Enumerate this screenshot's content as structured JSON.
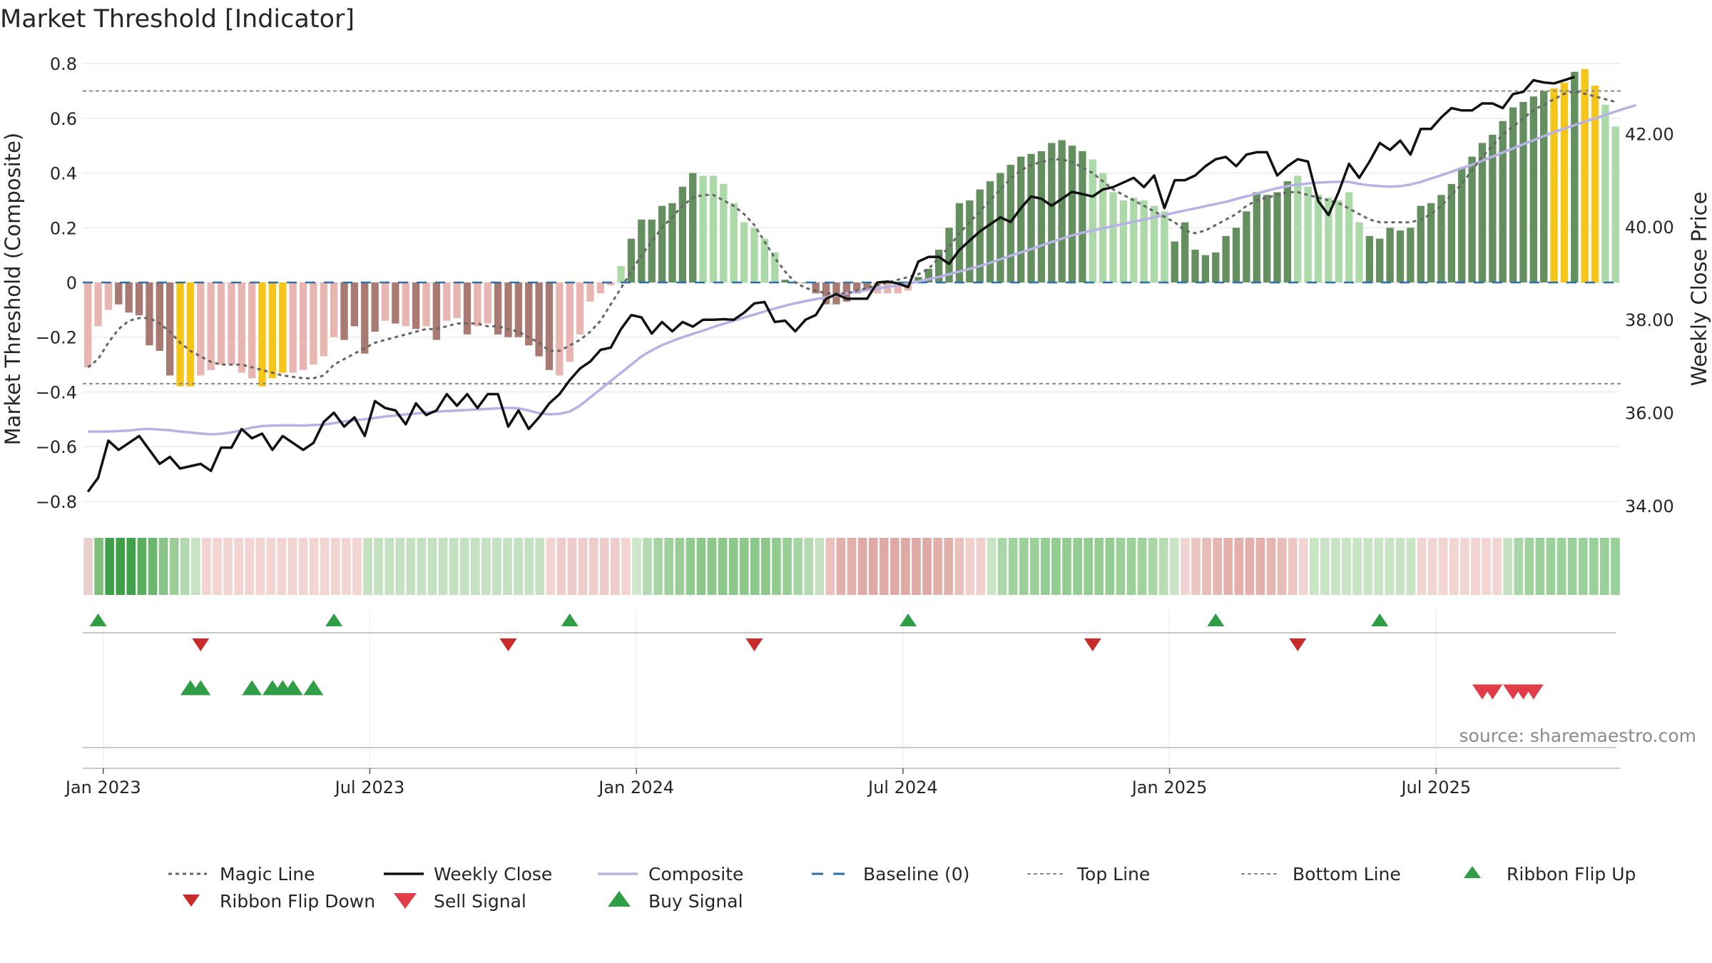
{
  "chart_data": {
    "type": "bar",
    "title": "Market Threshold [Indicator]",
    "ylabel_left": "Market Threshold (Composite)",
    "ylabel_right": "Weekly Close Price",
    "ylim_left": [
      -0.85,
      0.85
    ],
    "ylim_right": [
      33.8,
      43.8
    ],
    "y_ticks_left": [
      "0.8",
      "0.6",
      "0.4",
      "0.2",
      "0",
      "−0.2",
      "−0.4",
      "−0.6",
      "−0.8"
    ],
    "y_tick_values_left": [
      0.8,
      0.6,
      0.4,
      0.2,
      0,
      -0.2,
      -0.4,
      -0.6,
      -0.8
    ],
    "y_ticks_right": [
      "42.00",
      "40.00",
      "38.00",
      "36.00",
      "34.00"
    ],
    "y_tick_values_right": [
      42,
      40,
      38,
      36,
      34
    ],
    "x_ticks": [
      "Jan 2023",
      "Jul 2023",
      "Jan 2024",
      "Jul 2024",
      "Jan 2025",
      "Jul 2025"
    ],
    "x_tick_weeks": [
      1.5,
      27.5,
      53.5,
      79.5,
      105.5,
      131.5
    ],
    "top_line": 0.7,
    "bottom_line": -0.37,
    "baseline": 0,
    "source": "source: sharemaestro.com",
    "colors": {
      "bar_light_red": "#e9b5b0",
      "bar_dark_red": "#a87a72",
      "bar_gold": "#f5c518",
      "bar_light_green": "#abd9a8",
      "bar_dark_green": "#648f5e",
      "magic_line": "#666666",
      "weekly_close": "#111111",
      "composite": "#b7b2e6",
      "baseline": "#2e6fa5",
      "ref_lines": "#888888",
      "flip_up": "#2f9e44",
      "flip_down": "#c92a2a",
      "sell": "#e03d48",
      "buy": "#2f9e44"
    },
    "composite": [
      -0.31,
      -0.16,
      -0.1,
      -0.08,
      -0.11,
      -0.12,
      -0.23,
      -0.25,
      -0.34,
      -0.38,
      -0.38,
      -0.34,
      -0.32,
      -0.3,
      -0.3,
      -0.33,
      -0.35,
      -0.38,
      -0.35,
      -0.33,
      -0.33,
      -0.32,
      -0.3,
      -0.27,
      -0.2,
      -0.21,
      -0.16,
      -0.26,
      -0.18,
      -0.14,
      -0.15,
      -0.16,
      -0.17,
      -0.16,
      -0.21,
      -0.14,
      -0.13,
      -0.19,
      -0.16,
      -0.15,
      -0.19,
      -0.2,
      -0.2,
      -0.23,
      -0.27,
      -0.32,
      -0.34,
      -0.29,
      -0.19,
      -0.07,
      -0.04,
      -0.01,
      0.06,
      0.16,
      0.23,
      0.23,
      0.28,
      0.29,
      0.35,
      0.4,
      0.39,
      0.39,
      0.36,
      0.29,
      0.22,
      0.2,
      0.16,
      0.11,
      0.01,
      0,
      0,
      -0.04,
      -0.08,
      -0.08,
      -0.07,
      -0.04,
      -0.03,
      -0.04,
      -0.04,
      -0.04,
      -0.03,
      0.02,
      0.05,
      0.12,
      0.2,
      0.29,
      0.3,
      0.34,
      0.37,
      0.4,
      0.43,
      0.46,
      0.47,
      0.48,
      0.51,
      0.52,
      0.5,
      0.48,
      0.45,
      0.4,
      0.33,
      0.3,
      0.31,
      0.3,
      0.28,
      0.26,
      0.15,
      0.22,
      0.12,
      0.1,
      0.11,
      0.17,
      0.2,
      0.26,
      0.33,
      0.32,
      0.33,
      0.37,
      0.39,
      0.35,
      0.32,
      0.31,
      0.3,
      0.33,
      0.22,
      0.17,
      0.16,
      0.2,
      0.19,
      0.2,
      0.28,
      0.29,
      0.32,
      0.36,
      0.42,
      0.46,
      0.51,
      0.54,
      0.59,
      0.64,
      0.66,
      0.68,
      0.7,
      0.71,
      0.73,
      0.77,
      0.78,
      0.72,
      0.65,
      0.57
    ],
    "bar_colors": "LLLDDDDDDGGLLLLLLGGGLLLLLDDDDLDLDLDLLDLLDDDDDDLLLLLLLEEEEEEELLLLLLLLDDDDDDDDDLLLLEEEEEEEEEEEEEEEEELLLLLLLLEEEEEEEEEEEELLLLLLLEEEEEEEEEEEEEEEEEEGGEGGLL",
    "bar_color_legend": {
      "L": "light",
      "D": "dark",
      "G": "gold",
      "E": "dark-positive"
    },
    "magic_line": [
      -0.31,
      -0.28,
      -0.22,
      -0.17,
      -0.14,
      -0.13,
      -0.13,
      -0.15,
      -0.18,
      -0.22,
      -0.25,
      -0.27,
      -0.29,
      -0.3,
      -0.3,
      -0.3,
      -0.31,
      -0.32,
      -0.33,
      -0.34,
      -0.345,
      -0.35,
      -0.35,
      -0.34,
      -0.3,
      -0.28,
      -0.26,
      -0.24,
      -0.22,
      -0.21,
      -0.2,
      -0.19,
      -0.18,
      -0.17,
      -0.17,
      -0.16,
      -0.15,
      -0.15,
      -0.15,
      -0.16,
      -0.16,
      -0.17,
      -0.18,
      -0.2,
      -0.22,
      -0.25,
      -0.25,
      -0.23,
      -0.21,
      -0.18,
      -0.14,
      -0.08,
      -0.02,
      0.04,
      0.1,
      0.15,
      0.2,
      0.24,
      0.28,
      0.31,
      0.32,
      0.32,
      0.3,
      0.28,
      0.25,
      0.21,
      0.15,
      0.09,
      0.04,
      0,
      -0.02,
      -0.03,
      -0.04,
      -0.04,
      -0.04,
      -0.03,
      -0.02,
      -0.01,
      0,
      0.01,
      0.02,
      0.03,
      0.05,
      0.09,
      0.13,
      0.18,
      0.22,
      0.26,
      0.3,
      0.34,
      0.38,
      0.41,
      0.43,
      0.44,
      0.45,
      0.45,
      0.44,
      0.42,
      0.4,
      0.37,
      0.34,
      0.32,
      0.3,
      0.28,
      0.26,
      0.24,
      0.22,
      0.19,
      0.18,
      0.19,
      0.21,
      0.23,
      0.25,
      0.28,
      0.3,
      0.31,
      0.32,
      0.33,
      0.33,
      0.32,
      0.31,
      0.3,
      0.29,
      0.27,
      0.25,
      0.23,
      0.22,
      0.22,
      0.22,
      0.22,
      0.23,
      0.25,
      0.28,
      0.32,
      0.36,
      0.41,
      0.46,
      0.5,
      0.54,
      0.57,
      0.6,
      0.63,
      0.65,
      0.67,
      0.69,
      0.7,
      0.69,
      0.68,
      0.67,
      0.66
    ],
    "composite_line": [
      -0.545,
      -0.545,
      -0.545,
      -0.543,
      -0.541,
      -0.537,
      -0.535,
      -0.538,
      -0.54,
      -0.545,
      -0.548,
      -0.552,
      -0.555,
      -0.553,
      -0.548,
      -0.54,
      -0.53,
      -0.525,
      -0.523,
      -0.522,
      -0.522,
      -0.523,
      -0.521,
      -0.52,
      -0.514,
      -0.508,
      -0.504,
      -0.5,
      -0.495,
      -0.49,
      -0.486,
      -0.482,
      -0.479,
      -0.475,
      -0.472,
      -0.47,
      -0.468,
      -0.466,
      -0.464,
      -0.462,
      -0.46,
      -0.458,
      -0.46,
      -0.468,
      -0.478,
      -0.482,
      -0.48,
      -0.472,
      -0.45,
      -0.42,
      -0.39,
      -0.36,
      -0.33,
      -0.3,
      -0.27,
      -0.248,
      -0.229,
      -0.214,
      -0.2,
      -0.188,
      -0.176,
      -0.163,
      -0.151,
      -0.14,
      -0.128,
      -0.117,
      -0.106,
      -0.095,
      -0.085,
      -0.076,
      -0.068,
      -0.061,
      -0.054,
      -0.047,
      -0.04,
      -0.034,
      -0.028,
      -0.022,
      -0.016,
      -0.01,
      -0.004,
      0.004,
      0.012,
      0.02,
      0.03,
      0.04,
      0.05,
      0.06,
      0.072,
      0.085,
      0.098,
      0.11,
      0.122,
      0.135,
      0.148,
      0.16,
      0.172,
      0.182,
      0.19,
      0.198,
      0.206,
      0.214,
      0.222,
      0.23,
      0.238,
      0.246,
      0.255,
      0.263,
      0.271,
      0.279,
      0.287,
      0.295,
      0.305,
      0.315,
      0.325,
      0.335,
      0.345,
      0.352,
      0.358,
      0.362,
      0.365,
      0.367,
      0.368,
      0.368,
      0.36,
      0.355,
      0.352,
      0.35,
      0.352,
      0.358,
      0.368,
      0.38,
      0.392,
      0.405,
      0.418,
      0.43,
      0.445,
      0.46,
      0.475,
      0.49,
      0.505,
      0.52,
      0.535,
      0.55,
      0.562,
      0.575,
      0.588,
      0.6,
      0.612,
      0.625,
      0.637,
      0.648
    ],
    "weekly_close": [
      34.3,
      34.6,
      35.4,
      35.2,
      35.35,
      35.5,
      35.2,
      34.9,
      35.05,
      34.8,
      34.85,
      34.9,
      34.75,
      35.25,
      35.25,
      35.65,
      35.45,
      35.55,
      35.2,
      35.5,
      35.35,
      35.2,
      35.35,
      35.8,
      36,
      35.7,
      35.9,
      35.5,
      36.25,
      36.1,
      36.05,
      35.75,
      36.2,
      35.95,
      36.05,
      36.4,
      36.15,
      36.4,
      36.1,
      36.4,
      36.4,
      35.7,
      36.05,
      35.65,
      35.9,
      36.2,
      36.4,
      36.7,
      36.95,
      37.1,
      37.35,
      37.4,
      37.8,
      38.1,
      38.05,
      37.7,
      37.95,
      37.75,
      37.95,
      37.85,
      38,
      38,
      38.01,
      38,
      38.15,
      38.35,
      38.38,
      37.95,
      37.98,
      37.75,
      38,
      38.1,
      38.45,
      38.55,
      38.45,
      38.45,
      38.45,
      38.8,
      38.82,
      38.78,
      38.7,
      39.25,
      39.35,
      39.35,
      39.2,
      39.5,
      39.7,
      39.9,
      40.05,
      40.2,
      40.1,
      40.4,
      40.65,
      40.6,
      40.45,
      40.6,
      40.75,
      40.7,
      40.65,
      40.8,
      40.85,
      40.95,
      41.05,
      40.85,
      41.1,
      40.4,
      41,
      41,
      41.1,
      41.3,
      41.45,
      41.5,
      41.3,
      41.55,
      41.6,
      41.6,
      41.1,
      41.3,
      41.45,
      41.4,
      40.55,
      40.25,
      40.75,
      41.35,
      41.05,
      41.4,
      41.8,
      41.65,
      41.85,
      41.55,
      42.1,
      42.1,
      42.35,
      42.55,
      42.5,
      42.5,
      42.65,
      42.65,
      42.55,
      42.85,
      42.9,
      43.15,
      43.1,
      43.08,
      43.15,
      43.22
    ],
    "ribbon_weeks": 143,
    "ribbon_colors": [
      "#e8d0cf",
      "#7fbf7b",
      "#3fa049",
      "#3fa049",
      "#3fa049",
      "#5aaf5f",
      "#6db670",
      "#8ac48a",
      "#9ccd99",
      "#b3d9b0",
      "#c6e2c3",
      "#f2d4d3",
      "#f2d4d3",
      "#f2d4d3",
      "#f2d4d3",
      "#f2d4d3",
      "#f2d4d3",
      "#f2d4d3",
      "#f2d4d3",
      "#f2d4d3",
      "#f2d4d3",
      "#f2d4d3",
      "#f2d4d3",
      "#f2d4d3",
      "#f2d4d3",
      "#f2d4d3",
      "#c4e2c1",
      "#c4e2c1",
      "#c4e2c1",
      "#c4e2c1",
      "#c4e2c1",
      "#c4e2c1",
      "#c4e2c1",
      "#c4e2c1",
      "#c4e2c1",
      "#c4e2c1",
      "#c4e2c1",
      "#c4e2c1",
      "#c4e2c1",
      "#c4e2c1",
      "#c4e2c1",
      "#c4e2c1",
      "#c4e2c1",
      "#f2d4d3",
      "#edcccb",
      "#edcccb",
      "#edcccb",
      "#edcccb",
      "#edcccb",
      "#edcccb",
      "#f2d4d3",
      "#cfe8cc",
      "#b3dab0",
      "#a6d4a3",
      "#9fd19c",
      "#99ce96",
      "#92cb8f",
      "#8cc889",
      "#8cc889",
      "#8cc889",
      "#8cc889",
      "#8cc889",
      "#8cc889",
      "#8cc889",
      "#92cb8f",
      "#99ce96",
      "#a6d4a3",
      "#b3dab0",
      "#c6e2c3",
      "#e9c1bd",
      "#e2b0ab",
      "#e2b0ab",
      "#dfaaa5",
      "#dfaaa5",
      "#dfaaa5",
      "#dfaaa5",
      "#dfaaa5",
      "#dfaaa5",
      "#dfaaa5",
      "#e2b0ab",
      "#e2b0ab",
      "#e9c1bd",
      "#f0cfcc",
      "#f0cfcc",
      "#c8e4c5",
      "#aad7a7",
      "#a2d39f",
      "#9bd098",
      "#9bd098",
      "#94cd91",
      "#94cd91",
      "#94cd91",
      "#94cd91",
      "#94cd91",
      "#94cd91",
      "#94cd91",
      "#9bd098",
      "#9bd098",
      "#a2d39f",
      "#aad7a7",
      "#b8ddb5",
      "#c8e4c5",
      "#f2d4d3",
      "#ecc6c3",
      "#e8bcb8",
      "#e5b5b1",
      "#e3b0ac",
      "#e3b0ac",
      "#e3b0ac",
      "#e3b0ac",
      "#e5b5b1",
      "#e8bcb8",
      "#ecc6c3",
      "#f2d4d3",
      "#c8e4c5",
      "#c8e4c5",
      "#c8e4c5",
      "#c8e4c5",
      "#c8e4c5",
      "#c8e4c5",
      "#c8e4c5",
      "#c8e4c5",
      "#c8e4c5",
      "#c8e4c5",
      "#f2d4d3",
      "#f2d4d3",
      "#f2d4d3",
      "#f2d4d3",
      "#f2d4d3",
      "#f2d4d3",
      "#f2d4d3",
      "#f2d4d3",
      "#c4e2c1",
      "#a9d6a6",
      "#a0d29d",
      "#9ad09a",
      "#9ad09a",
      "#9ad09a",
      "#9ad09a",
      "#9ad09a",
      "#9ad09a",
      "#9ad09a",
      "#9ad09a",
      "#9ad09a",
      "#9ad09a",
      "#a0d29d",
      "#a9d6a6",
      "#b5dbb2"
    ],
    "ribbon_flip_up_weeks": [
      1,
      24,
      47,
      80,
      110,
      126
    ],
    "ribbon_flip_down_weeks": [
      11,
      41,
      65,
      98,
      118
    ],
    "buy_signal_weeks": [
      10,
      11,
      16,
      18,
      19,
      20,
      22
    ],
    "sell_signal_weeks": [
      136,
      137,
      139,
      140,
      141
    ]
  },
  "legend": {
    "magic_line": "Magic Line",
    "weekly_close": "Weekly Close",
    "composite": "Composite",
    "baseline": "Baseline (0)",
    "top_line": "Top Line",
    "bottom_line": "Bottom Line",
    "ribbon_flip_up": "Ribbon Flip Up",
    "ribbon_flip_down": "Ribbon Flip Down",
    "sell_signal": "Sell Signal",
    "buy_signal": "Buy Signal"
  }
}
